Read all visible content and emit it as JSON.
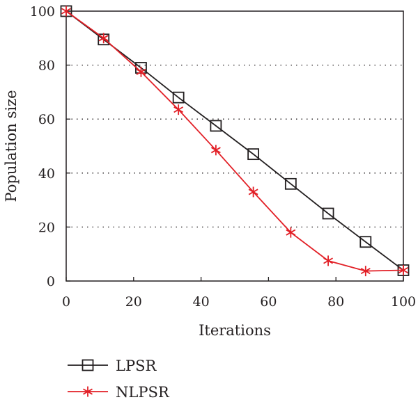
{
  "chart_data": {
    "type": "line",
    "title": "",
    "xlabel": "Iterations",
    "ylabel": "Population size",
    "xlim": [
      0,
      100
    ],
    "ylim": [
      0,
      100
    ],
    "xticks": [
      "0",
      "20",
      "40",
      "60",
      "80",
      "100"
    ],
    "yticks": [
      "0",
      "20",
      "40",
      "60",
      "80",
      "100"
    ],
    "grid": "horizontal dotted",
    "legend_position": "below plot, left",
    "series": [
      {
        "name": "LPSR",
        "color": "#231f20",
        "marker": "square",
        "x": [
          0,
          11.1,
          22.2,
          33.3,
          44.4,
          55.5,
          66.6,
          77.7,
          88.8,
          100
        ],
        "y": [
          100,
          89.5,
          79,
          68,
          57.5,
          47,
          36,
          25,
          14.5,
          4
        ]
      },
      {
        "name": "NLPSR",
        "color": "#e21f26",
        "marker": "asterisk",
        "x": [
          0,
          11.1,
          22.2,
          33.3,
          44.4,
          55.5,
          66.6,
          77.7,
          88.8,
          100
        ],
        "y": [
          100,
          90,
          77.5,
          63.5,
          48.5,
          33,
          18,
          7.5,
          3.7,
          4
        ]
      }
    ]
  }
}
